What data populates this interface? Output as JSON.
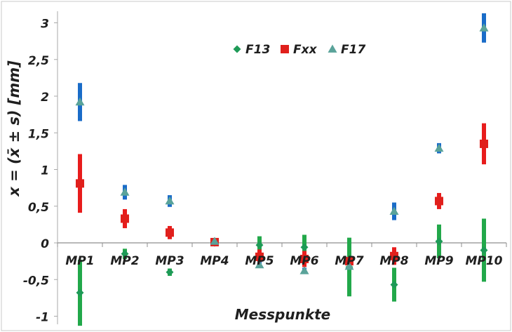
{
  "chart_data": {
    "type": "scatter",
    "title": "",
    "xlabel": "Messpunkte",
    "ylabel": "x = (x̄ ± s) [mm]",
    "ylim": [
      -1.1,
      3.2
    ],
    "yticks": [
      {
        "value": 3,
        "label": "3"
      },
      {
        "value": 2.5,
        "label": "2,5"
      },
      {
        "value": 2,
        "label": "2"
      },
      {
        "value": 1.5,
        "label": "1,5"
      },
      {
        "value": 1,
        "label": "1"
      },
      {
        "value": 0.5,
        "label": "0,5"
      },
      {
        "value": 0,
        "label": "0"
      },
      {
        "value": -0.5,
        "label": "-0,5"
      },
      {
        "value": -1,
        "label": "-1"
      }
    ],
    "categories": [
      "MP1",
      "MP2",
      "MP3",
      "MP4",
      "MP5",
      "MP6",
      "MP7",
      "MP8",
      "MP9",
      "MP10"
    ],
    "grid": false,
    "legend_position": "top-center",
    "series": [
      {
        "name": "F13",
        "marker": "diamond",
        "marker_color": "#1e9a57",
        "errorbar_color": "#22a84a",
        "values": [
          -0.68,
          -0.15,
          -0.4,
          0.0,
          -0.03,
          -0.06,
          -0.33,
          -0.57,
          0.02,
          -0.1
        ],
        "std": [
          0.45,
          0.07,
          0.05,
          0.0,
          0.12,
          0.17,
          0.4,
          0.23,
          0.23,
          0.43
        ]
      },
      {
        "name": "Fxx",
        "marker": "square",
        "marker_color": "#e0201c",
        "errorbar_color": "#e81c1c",
        "values": [
          0.81,
          0.33,
          0.14,
          0.01,
          -0.19,
          -0.22,
          -0.25,
          -0.18,
          0.57,
          1.35
        ],
        "std": [
          0.4,
          0.13,
          0.09,
          0.0,
          0.1,
          0.11,
          0.05,
          0.12,
          0.11,
          0.28
        ]
      },
      {
        "name": "F17",
        "marker": "triangle",
        "marker_color": "#5aa39a",
        "errorbar_color": "#1a6cc8",
        "values": [
          1.92,
          0.69,
          0.57,
          0.02,
          -0.3,
          -0.38,
          -0.32,
          0.43,
          1.29,
          2.93
        ],
        "std": [
          0.26,
          0.1,
          0.08,
          0.0,
          0.04,
          0.04,
          0.04,
          0.12,
          0.07,
          0.2
        ]
      }
    ]
  }
}
